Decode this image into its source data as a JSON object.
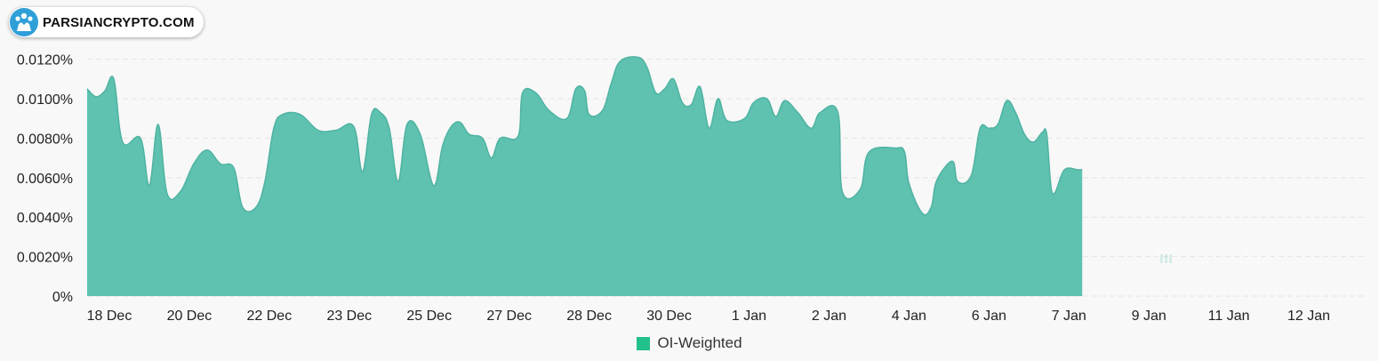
{
  "badge": {
    "site": "PARSIANCRYPTO.COM"
  },
  "watermark": {
    "text": "coinglass"
  },
  "legend": {
    "label": "OI-Weighted",
    "color": "#22c08a"
  },
  "colors": {
    "area_fill": "#5fc1b0",
    "area_stroke": "#4fb3a2",
    "grid": "#e3e3e3",
    "background": "#f8f8f8",
    "badge_logo": "#2f9fd8"
  },
  "chart_data": {
    "type": "area",
    "title": "",
    "xlabel": "",
    "ylabel": "",
    "ylim": [
      0,
      0.0132
    ],
    "grid": true,
    "legend_position": "bottom-center",
    "y_ticks": [
      0,
      0.002,
      0.004,
      0.006,
      0.008,
      0.01,
      0.012
    ],
    "y_tick_labels": [
      "0%",
      "0.0020%",
      "0.0040%",
      "0.0060%",
      "0.0080%",
      "0.0100%",
      "0.0120%"
    ],
    "x_range": [
      0,
      288
    ],
    "x_ticks": [
      {
        "x": 5,
        "label": "18 Dec"
      },
      {
        "x": 23,
        "label": "20 Dec"
      },
      {
        "x": 41,
        "label": "22 Dec"
      },
      {
        "x": 59,
        "label": "23 Dec"
      },
      {
        "x": 77,
        "label": "25 Dec"
      },
      {
        "x": 95,
        "label": "27 Dec"
      },
      {
        "x": 113,
        "label": "28 Dec"
      },
      {
        "x": 131,
        "label": "30 Dec"
      },
      {
        "x": 149,
        "label": "1 Jan"
      },
      {
        "x": 167,
        "label": "2 Jan"
      },
      {
        "x": 185,
        "label": "4 Jan"
      },
      {
        "x": 203,
        "label": "6 Jan"
      },
      {
        "x": 221,
        "label": "7 Jan"
      },
      {
        "x": 239,
        "label": "9 Jan"
      },
      {
        "x": 257,
        "label": "11 Jan"
      },
      {
        "x": 275,
        "label": "12 Jan"
      }
    ],
    "series": [
      {
        "name": "OI-Weighted",
        "points": [
          [
            0,
            0.0105
          ],
          [
            2,
            0.0101
          ],
          [
            4,
            0.0104
          ],
          [
            6,
            0.011
          ],
          [
            8,
            0.0078
          ],
          [
            12,
            0.008
          ],
          [
            14,
            0.0056
          ],
          [
            16,
            0.0087
          ],
          [
            18,
            0.0052
          ],
          [
            21,
            0.0053
          ],
          [
            24,
            0.0067
          ],
          [
            27,
            0.0074
          ],
          [
            30,
            0.0067
          ],
          [
            33,
            0.0065
          ],
          [
            35,
            0.0045
          ],
          [
            38,
            0.0045
          ],
          [
            40,
            0.0058
          ],
          [
            42,
            0.0085
          ],
          [
            44,
            0.0092
          ],
          [
            48,
            0.0092
          ],
          [
            52,
            0.0084
          ],
          [
            56,
            0.0084
          ],
          [
            60,
            0.0086
          ],
          [
            62,
            0.0063
          ],
          [
            64,
            0.0092
          ],
          [
            66,
            0.0093
          ],
          [
            68,
            0.0085
          ],
          [
            70,
            0.0058
          ],
          [
            72,
            0.0087
          ],
          [
            75,
            0.0082
          ],
          [
            78,
            0.0056
          ],
          [
            80,
            0.0076
          ],
          [
            82,
            0.0086
          ],
          [
            84,
            0.0088
          ],
          [
            86,
            0.0082
          ],
          [
            89,
            0.008
          ],
          [
            91,
            0.007
          ],
          [
            93,
            0.008
          ],
          [
            97,
            0.0081
          ],
          [
            98,
            0.0103
          ],
          [
            101,
            0.0103
          ],
          [
            104,
            0.0094
          ],
          [
            108,
            0.009
          ],
          [
            110,
            0.0105
          ],
          [
            112,
            0.0104
          ],
          [
            113,
            0.0092
          ],
          [
            116,
            0.0094
          ],
          [
            118,
            0.0108
          ],
          [
            120,
            0.0119
          ],
          [
            124,
            0.0121
          ],
          [
            126,
            0.0116
          ],
          [
            128,
            0.0103
          ],
          [
            130,
            0.0105
          ],
          [
            132,
            0.011
          ],
          [
            134,
            0.0098
          ],
          [
            136,
            0.0097
          ],
          [
            138,
            0.0106
          ],
          [
            140,
            0.0085
          ],
          [
            142,
            0.01
          ],
          [
            144,
            0.0089
          ],
          [
            148,
            0.009
          ],
          [
            150,
            0.0098
          ],
          [
            153,
            0.01
          ],
          [
            155,
            0.0091
          ],
          [
            157,
            0.0099
          ],
          [
            160,
            0.0093
          ],
          [
            163,
            0.0085
          ],
          [
            165,
            0.0093
          ],
          [
            169,
            0.0093
          ],
          [
            170,
            0.0053
          ],
          [
            174,
            0.0054
          ],
          [
            176,
            0.0073
          ],
          [
            182,
            0.0075
          ],
          [
            184,
            0.0073
          ],
          [
            185,
            0.0057
          ],
          [
            188,
            0.0042
          ],
          [
            190,
            0.0045
          ],
          [
            191,
            0.0057
          ],
          [
            193,
            0.0065
          ],
          [
            195,
            0.0068
          ],
          [
            196,
            0.0058
          ],
          [
            199,
            0.0061
          ],
          [
            201,
            0.0085
          ],
          [
            203,
            0.0085
          ],
          [
            205,
            0.0087
          ],
          [
            207,
            0.0099
          ],
          [
            209,
            0.0093
          ],
          [
            211,
            0.0082
          ],
          [
            213,
            0.0078
          ],
          [
            215,
            0.0083
          ],
          [
            216,
            0.0082
          ],
          [
            217,
            0.0055
          ],
          [
            218,
            0.0053
          ],
          [
            220,
            0.0064
          ],
          [
            223,
            0.0064
          ],
          [
            224,
            0.0064
          ]
        ]
      }
    ]
  }
}
